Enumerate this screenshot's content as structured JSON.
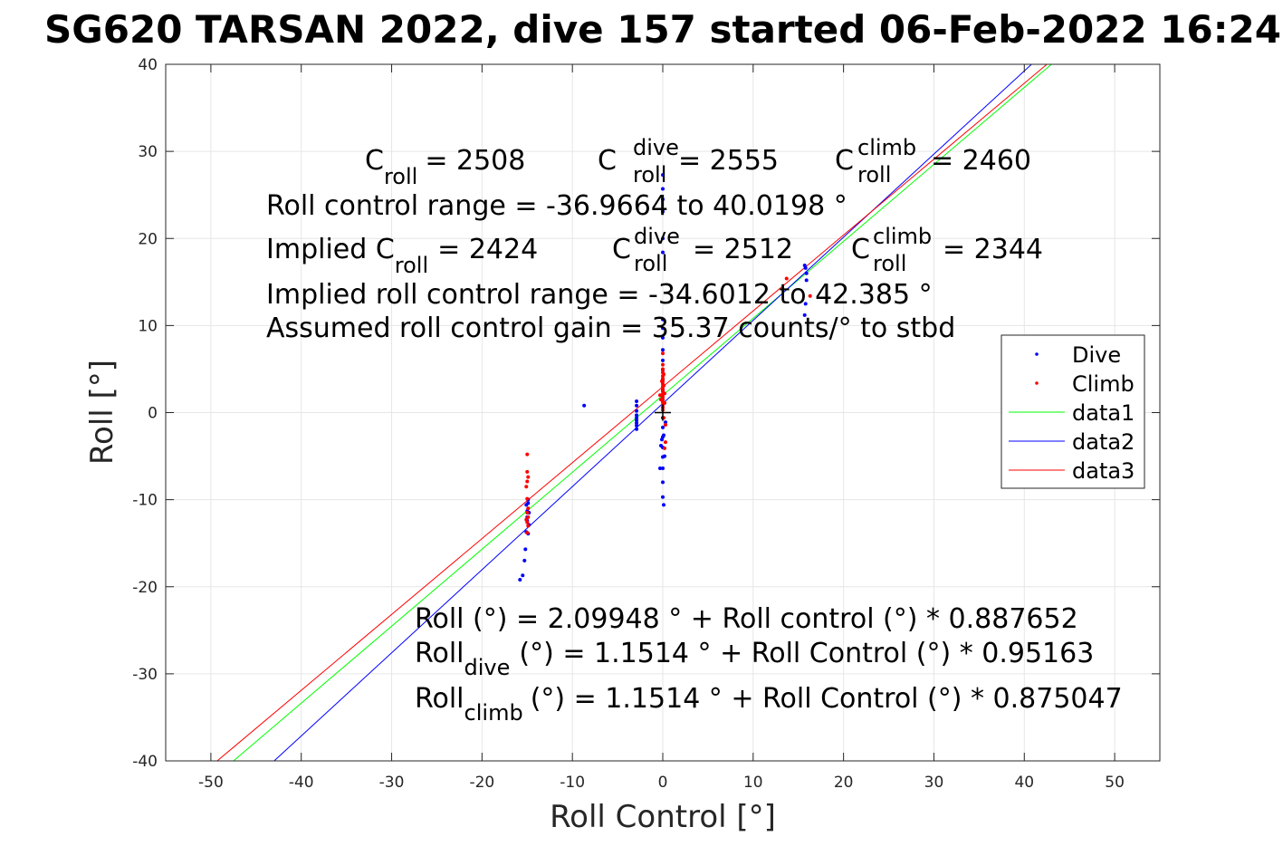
{
  "chart_data": {
    "type": "scatter",
    "title": "SG620 TARSAN 2022, dive 157 started 06-Feb-2022 16:24",
    "xlabel": "Roll Control [°]",
    "ylabel": "Roll [°]",
    "xlim": [
      -55,
      55
    ],
    "ylim": [
      -40,
      40
    ],
    "xticks": [
      -50,
      -40,
      -30,
      -20,
      -10,
      0,
      10,
      20,
      30,
      40,
      50
    ],
    "yticks": [
      -40,
      -30,
      -20,
      -10,
      0,
      10,
      20,
      30,
      40
    ],
    "grid": true,
    "legend_position": "right",
    "series": [
      {
        "name": "Dive",
        "kind": "points",
        "color": "#0000ff",
        "x": [
          -15.8,
          -15.5,
          -15.3,
          -15.2,
          -15.1,
          -15.0,
          -15.0,
          -14.9,
          -14.9,
          -14.8,
          -14.8,
          -14.9,
          -15.0,
          -15.1,
          -8.7,
          -2.9,
          -2.9,
          -2.9,
          -2.9,
          -2.9,
          -2.9,
          -2.9,
          -2.9,
          -2.9,
          -0.3,
          -0.2,
          -0.1,
          0.0,
          0.0,
          0.0,
          0.0,
          0.0,
          0.0,
          0.0,
          0.0,
          0.0,
          0.0,
          0.0,
          0.0,
          0.0,
          0.0,
          0.0,
          0.0,
          0.0,
          0.0,
          0.0,
          0.0,
          0.0,
          0.0,
          0.0,
          0.0,
          0.1,
          0.1,
          0.2,
          0.3,
          15.7,
          15.8,
          15.9,
          15.9,
          15.8,
          15.7
        ],
        "y": [
          -19.2,
          -18.7,
          -17.0,
          -15.7,
          -13.7,
          -12.4,
          -11.3,
          -10.4,
          -10.0,
          -11.5,
          -12.9,
          -13.9,
          -12.0,
          -10.6,
          0.8,
          1.3,
          0.8,
          0.2,
          -0.3,
          -0.6,
          -0.9,
          -1.2,
          -1.5,
          -1.9,
          -6.4,
          -3.8,
          -3.1,
          27.3,
          25.7,
          24.5,
          23.1,
          20.0,
          18.4,
          10.7,
          9.7,
          8.6,
          7.2,
          6.0,
          4.9,
          3.8,
          2.6,
          1.5,
          0.6,
          -0.6,
          -1.7,
          -2.8,
          -4.0,
          -5.1,
          -6.4,
          -8.0,
          -9.7,
          -10.6,
          -2.6,
          -5.0,
          -1.1,
          16.9,
          16.6,
          16.0,
          15.2,
          12.5,
          11.2
        ]
      },
      {
        "name": "Climb",
        "kind": "points",
        "color": "#ff0000",
        "x": [
          -15.0,
          -15.0,
          -14.9,
          -15.0,
          -15.1,
          -15.0,
          -14.9,
          -15.0,
          -14.9,
          -15.1,
          -15.0,
          -14.9,
          -15.0,
          -0.3,
          -0.2,
          -0.1,
          0.0,
          0.0,
          0.0,
          0.0,
          0.0,
          0.0,
          0.0,
          0.0,
          0.0,
          0.0,
          0.0,
          0.0,
          0.0,
          0.0,
          0.0,
          0.0,
          0.0,
          0.0,
          0.1,
          0.1,
          0.2,
          0.2,
          0.3,
          0.3,
          0.2,
          0.1,
          13.7,
          16.3
        ],
        "y": [
          -4.8,
          -6.8,
          -7.4,
          -7.9,
          -8.5,
          -9.9,
          -11.0,
          -11.5,
          -12.0,
          -12.3,
          -12.6,
          -13.0,
          -13.8,
          2.0,
          1.5,
          3.6,
          6.8,
          5.5,
          5.0,
          4.6,
          4.2,
          3.9,
          3.6,
          3.3,
          3.0,
          2.7,
          2.4,
          2.1,
          1.8,
          1.5,
          1.2,
          0.9,
          0.6,
          0.3,
          4.4,
          3.1,
          2.2,
          1.1,
          -1.4,
          -3.4,
          -4.1,
          -0.6,
          15.4,
          13.4
        ]
      },
      {
        "name": "data1",
        "kind": "line",
        "color": "#00ff00",
        "x": [
          -47.5,
          43.0
        ],
        "y": [
          -40,
          40
        ]
      },
      {
        "name": "data2",
        "kind": "line",
        "color": "#0000ff",
        "x": [
          -43.0,
          40.8
        ],
        "y": [
          -40,
          40
        ]
      },
      {
        "name": "data3",
        "kind": "line",
        "color": "#ff0000",
        "x": [
          -49.3,
          42.5
        ],
        "y": [
          -40,
          40
        ]
      }
    ],
    "marker": {
      "x": 0,
      "y": 0,
      "symbol": "+",
      "color": "#000000"
    },
    "annotations": {
      "c_roll": {
        "base": "C",
        "sub": "roll",
        "value": "= 2508"
      },
      "c_roll_dive": {
        "base": "C",
        "sup": "dive",
        "sub": "roll",
        "value": "= 2555"
      },
      "c_roll_climb": {
        "base": "C",
        "sup": "climb",
        "sub": "roll",
        "value": "= 2460"
      },
      "roll_control_range": "Roll control range = -36.9664 to 40.0198 °",
      "implied_c_roll": {
        "prefix": "Implied C",
        "sub": "roll",
        "value": "= 2424"
      },
      "implied_c_roll_dive": {
        "base": "C",
        "sup": "dive",
        "sub": "roll",
        "value": "= 2512"
      },
      "implied_c_roll_climb": {
        "base": "C",
        "sup": "climb",
        "sub": "roll",
        "value": "= 2344"
      },
      "implied_range": "Implied roll control range = -34.6012 to 42.385 °",
      "gain": "Assumed roll control gain = 35.37 counts/° to stbd",
      "fit_all": "Roll (°) = 2.09948 ° + Roll control (°) * 0.887652",
      "fit_dive": {
        "base": "Roll",
        "sub": "dive",
        "rest": "(°) = 1.1514 ° + Roll Control (°) * 0.95163"
      },
      "fit_climb": {
        "base": "Roll",
        "sub": "climb",
        "rest": "(°) = 1.1514 ° + Roll Control (°) * 0.875047"
      }
    }
  }
}
